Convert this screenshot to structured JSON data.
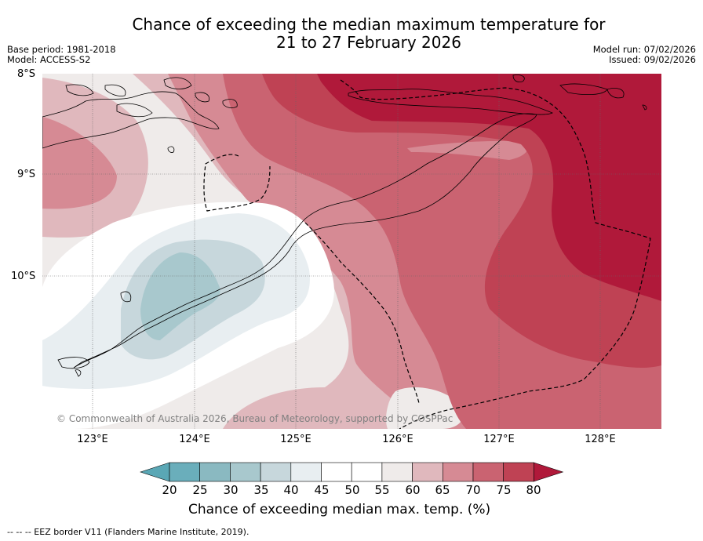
{
  "title": {
    "line1": "Chance of exceeding the median maximum temperature for",
    "line2": "21 to 27 February 2026"
  },
  "meta_left": {
    "base_period": "Base period: 1981-2018",
    "model": "Model: ACCESS-S2"
  },
  "meta_right": {
    "model_run": "Model run: 07/02/2026",
    "issued": "Issued: 09/02/2026"
  },
  "lat_labels": [
    "8°S",
    "9°S",
    "10°S"
  ],
  "lon_labels": [
    "123°E",
    "124°E",
    "125°E",
    "126°E",
    "127°E",
    "128°E"
  ],
  "copyright": "© Commonwealth of Australia 2026, Bureau of Meteorology, supported by COSPPac",
  "colorbar": {
    "ticks": [
      "20",
      "25",
      "30",
      "35",
      "40",
      "45",
      "50",
      "55",
      "60",
      "65",
      "70",
      "75",
      "80"
    ],
    "colors": [
      "#6aaebb",
      "#8ab9c1",
      "#a8c8cd",
      "#c7d7dc",
      "#e8eef1",
      "#ffffff",
      "#ffffff",
      "#efebea",
      "#e0b8bd",
      "#d68a94",
      "#ca6371",
      "#bf4254"
    ],
    "under_color": "#5aa7b5",
    "over_color": "#b0193a",
    "label": "Chance of exceeding median max. temp. (%)"
  },
  "footer": "--  --  -- EEZ border V11 (Flanders Marine Institute, 2019)."
}
